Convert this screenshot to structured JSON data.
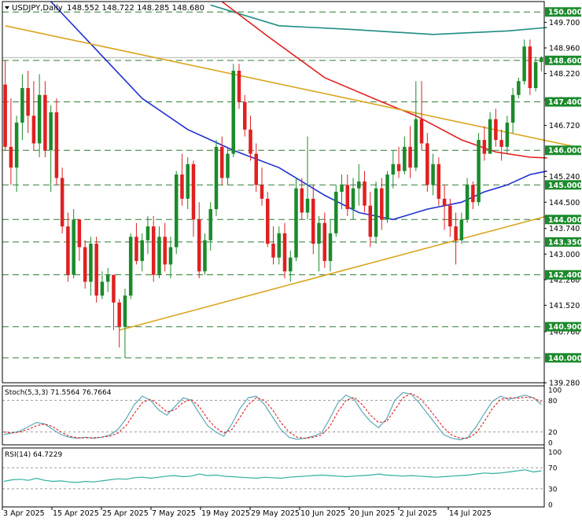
{
  "header": {
    "symbol_label": "USDJPY,Daily",
    "ohlc_text": "148.552 148.722 148.285 148.680"
  },
  "chart_data": [
    {
      "type": "candlestick",
      "title": "USDJPY,Daily",
      "ylim": [
        139.28,
        150.3
      ],
      "y_ticks": [
        139.28,
        140.76,
        141.52,
        142.26,
        143.0,
        143.74,
        144.5,
        145.24,
        146.72,
        147.46,
        148.22,
        148.96,
        149.7
      ],
      "levels": [
        150.0,
        148.6,
        147.4,
        146.0,
        145.0,
        144.0,
        143.35,
        142.4,
        140.9,
        140.0
      ],
      "x_labels": [
        "3 Apr 2025",
        "15 Apr 2025",
        "25 Apr 2025",
        "7 May 2025",
        "19 May 2025",
        "29 May 2025",
        "10 Jun 2025",
        "20 Jun 2025",
        "2 Jul 2025",
        "14 Jul 2025"
      ],
      "candles": [
        [
          147.9,
          148.6,
          146.0,
          146.1
        ],
        [
          146.1,
          147.5,
          145.0,
          145.5
        ],
        [
          145.5,
          147.0,
          144.8,
          146.8
        ],
        [
          146.8,
          148.2,
          146.3,
          147.8
        ],
        [
          147.8,
          148.3,
          146.5,
          147.0
        ],
        [
          147.0,
          148.0,
          146.0,
          146.2
        ],
        [
          146.2,
          148.2,
          145.8,
          147.6
        ],
        [
          147.6,
          148.0,
          145.8,
          146.0
        ],
        [
          146.0,
          147.3,
          144.8,
          147.1
        ],
        [
          147.1,
          147.5,
          145.0,
          145.2
        ],
        [
          145.2,
          145.5,
          143.6,
          143.8
        ],
        [
          143.8,
          144.2,
          142.2,
          142.4
        ],
        [
          142.4,
          144.3,
          142.3,
          144.0
        ],
        [
          144.0,
          144.0,
          142.8,
          143.2
        ],
        [
          143.2,
          143.4,
          142.0,
          142.2
        ],
        [
          142.2,
          143.5,
          141.8,
          143.3
        ],
        [
          143.3,
          143.5,
          141.6,
          141.8
        ],
        [
          141.8,
          142.5,
          141.7,
          142.2
        ],
        [
          142.2,
          142.6,
          141.9,
          142.4
        ],
        [
          142.4,
          142.4,
          140.8,
          141.6
        ],
        [
          141.6,
          141.7,
          140.3,
          140.9
        ],
        [
          140.9,
          142.0,
          140.0,
          141.8
        ],
        [
          141.8,
          143.6,
          141.7,
          143.5
        ],
        [
          143.5,
          143.9,
          142.7,
          142.8
        ],
        [
          142.8,
          143.6,
          142.5,
          143.4
        ],
        [
          143.4,
          144.1,
          143.0,
          143.8
        ],
        [
          143.8,
          144.1,
          142.2,
          142.4
        ],
        [
          142.4,
          143.8,
          142.3,
          143.5
        ],
        [
          143.5,
          143.9,
          142.5,
          142.7
        ],
        [
          142.7,
          143.5,
          142.3,
          143.2
        ],
        [
          143.2,
          145.4,
          143.0,
          145.3
        ],
        [
          145.3,
          145.9,
          144.4,
          144.6
        ],
        [
          144.6,
          145.8,
          144.3,
          145.6
        ],
        [
          145.6,
          145.7,
          143.5,
          144.0
        ],
        [
          144.0,
          144.5,
          142.3,
          142.5
        ],
        [
          142.5,
          143.6,
          142.4,
          143.4
        ],
        [
          143.4,
          144.5,
          143.1,
          144.3
        ],
        [
          144.3,
          146.3,
          144.1,
          146.1
        ],
        [
          146.1,
          146.4,
          145.0,
          145.2
        ],
        [
          145.2,
          146.1,
          145.0,
          145.9
        ],
        [
          145.9,
          148.5,
          145.8,
          148.3
        ],
        [
          148.3,
          148.5,
          147.2,
          147.4
        ],
        [
          147.4,
          147.6,
          146.4,
          146.6
        ],
        [
          146.6,
          147.0,
          145.7,
          145.9
        ],
        [
          145.9,
          146.2,
          144.8,
          145.0
        ],
        [
          145.0,
          145.5,
          144.4,
          144.6
        ],
        [
          144.6,
          144.8,
          143.2,
          143.3
        ],
        [
          143.3,
          143.8,
          142.7,
          142.9
        ],
        [
          142.9,
          143.8,
          142.7,
          143.6
        ],
        [
          143.6,
          143.9,
          142.3,
          142.5
        ],
        [
          142.5,
          143.1,
          142.2,
          142.9
        ],
        [
          142.9,
          145.2,
          142.8,
          144.9
        ],
        [
          144.9,
          145.2,
          144.0,
          144.2
        ],
        [
          144.2,
          146.4,
          144.0,
          144.6
        ],
        [
          144.6,
          145.0,
          143.0,
          143.3
        ],
        [
          143.3,
          144.1,
          142.5,
          143.9
        ],
        [
          143.9,
          144.2,
          142.6,
          142.8
        ],
        [
          142.8,
          144.0,
          142.5,
          143.6
        ],
        [
          143.6,
          145.0,
          143.5,
          144.8
        ],
        [
          144.8,
          145.3,
          144.3,
          145.0
        ],
        [
          145.0,
          145.3,
          144.1,
          144.3
        ],
        [
          144.3,
          145.2,
          144.0,
          144.9
        ],
        [
          144.9,
          145.6,
          144.4,
          145.1
        ],
        [
          145.1,
          145.4,
          144.2,
          144.4
        ],
        [
          144.4,
          144.8,
          143.2,
          143.5
        ],
        [
          143.5,
          145.1,
          143.3,
          144.9
        ],
        [
          144.9,
          145.2,
          143.7,
          144.0
        ],
        [
          144.0,
          145.4,
          143.9,
          145.3
        ],
        [
          145.3,
          146.0,
          144.9,
          145.6
        ],
        [
          145.6,
          146.1,
          145.2,
          145.4
        ],
        [
          145.4,
          146.4,
          145.3,
          146.1
        ],
        [
          146.1,
          146.7,
          145.2,
          145.5
        ],
        [
          145.5,
          148.0,
          145.4,
          146.9
        ],
        [
          146.9,
          148.0,
          146.0,
          146.2
        ],
        [
          146.2,
          146.5,
          144.8,
          145.0
        ],
        [
          145.0,
          145.9,
          144.7,
          145.6
        ],
        [
          145.6,
          145.8,
          144.4,
          144.6
        ],
        [
          144.6,
          145.0,
          143.7,
          144.4
        ],
        [
          144.4,
          144.6,
          143.5,
          143.8
        ],
        [
          143.8,
          144.2,
          142.7,
          143.4
        ],
        [
          143.4,
          144.2,
          143.3,
          144.0
        ],
        [
          144.0,
          145.2,
          143.9,
          145.0
        ],
        [
          145.0,
          145.1,
          144.3,
          144.5
        ],
        [
          144.5,
          146.5,
          144.4,
          146.3
        ],
        [
          146.3,
          146.7,
          145.7,
          145.9
        ],
        [
          145.9,
          147.1,
          145.9,
          146.9
        ],
        [
          146.9,
          147.2,
          146.1,
          146.3
        ],
        [
          146.3,
          146.6,
          145.7,
          146.1
        ],
        [
          146.1,
          147.0,
          145.9,
          146.8
        ],
        [
          146.8,
          147.8,
          146.5,
          147.6
        ],
        [
          147.6,
          148.1,
          147.5,
          148.0
        ],
        [
          148.0,
          149.2,
          147.9,
          149.0
        ],
        [
          149.0,
          149.2,
          147.6,
          147.8
        ],
        [
          147.8,
          148.7,
          147.7,
          148.55
        ],
        [
          148.552,
          148.722,
          148.285,
          148.68
        ]
      ],
      "trendlines": [
        {
          "color": "#daa520",
          "from": [
            0,
            149.6
          ],
          "to": [
            120,
            145.4
          ]
        },
        {
          "color": "#daa520",
          "from": [
            20,
            140.8
          ],
          "to": [
            95,
            144.1
          ]
        }
      ],
      "moving_averages": [
        {
          "color": "#1e8c82",
          "points": [
            [
              36,
              150.2
            ],
            [
              48,
              149.6
            ],
            [
              60,
              149.5
            ],
            [
              75,
              149.35
            ],
            [
              88,
              149.45
            ],
            [
              95,
              149.55
            ]
          ]
        },
        {
          "color": "#e02020",
          "points": [
            [
              38,
              150.3
            ],
            [
              46,
              149.3
            ],
            [
              56,
              148.1
            ],
            [
              66,
              147.4
            ],
            [
              72,
              147.0
            ],
            [
              80,
              146.3
            ],
            [
              86,
              145.95
            ],
            [
              92,
              145.8
            ],
            [
              95,
              145.78
            ]
          ]
        },
        {
          "color": "#2030d0",
          "points": [
            [
              8,
              150.3
            ],
            [
              16,
              148.9
            ],
            [
              24,
              147.5
            ],
            [
              32,
              146.6
            ],
            [
              40,
              146.0
            ],
            [
              48,
              145.5
            ],
            [
              56,
              144.7
            ],
            [
              62,
              144.2
            ],
            [
              68,
              144.0
            ],
            [
              74,
              144.3
            ],
            [
              80,
              144.5
            ],
            [
              84,
              144.8
            ],
            [
              88,
              145.0
            ],
            [
              92,
              145.3
            ],
            [
              95,
              145.4
            ]
          ]
        }
      ]
    },
    {
      "type": "line",
      "title": "Stoch(5,3,3) 71.5564 76.7664",
      "ylim": [
        0,
        100
      ],
      "y_ticks": [
        0,
        20,
        80,
        100
      ],
      "series": [
        {
          "name": "Main",
          "color": "#5ba8b8",
          "values": [
            15,
            18,
            22,
            30,
            38,
            35,
            25,
            15,
            10,
            8,
            10,
            8,
            10,
            14,
            25,
            45,
            72,
            88,
            80,
            62,
            52,
            68,
            85,
            80,
            55,
            32,
            20,
            12,
            35,
            65,
            85,
            88,
            72,
            48,
            25,
            10,
            6,
            8,
            12,
            18,
            45,
            75,
            90,
            82,
            58,
            40,
            28,
            45,
            80,
            95,
            92,
            75,
            55,
            35,
            15,
            8,
            5,
            10,
            30,
            55,
            78,
            88,
            82,
            86,
            90,
            85,
            72
          ]
        },
        {
          "name": "Signal",
          "color": "#e03030",
          "values": [
            20,
            18,
            20,
            25,
            32,
            35,
            30,
            20,
            12,
            9,
            9,
            9,
            10,
            12,
            18,
            32,
            55,
            76,
            82,
            72,
            58,
            62,
            76,
            82,
            68,
            45,
            28,
            18,
            25,
            48,
            72,
            85,
            80,
            62,
            38,
            20,
            10,
            8,
            10,
            14,
            30,
            58,
            80,
            86,
            72,
            52,
            38,
            40,
            62,
            85,
            93,
            85,
            68,
            48,
            28,
            14,
            8,
            8,
            18,
            40,
            65,
            82,
            85,
            84,
            86,
            85,
            77
          ]
        }
      ]
    },
    {
      "type": "line",
      "title": "RSI(14) 64.7229",
      "ylim": [
        0,
        100
      ],
      "y_ticks": [
        0,
        30,
        70,
        100
      ],
      "series": [
        {
          "name": "RSI",
          "color": "#30b0a0",
          "values": [
            44,
            47,
            48,
            46,
            50,
            46,
            44,
            45,
            43,
            42,
            44,
            43,
            45,
            47,
            49,
            48,
            51,
            52,
            50,
            52,
            54,
            55,
            53,
            54,
            58,
            55,
            56,
            54,
            53,
            52,
            51,
            50,
            52,
            51,
            50,
            52,
            53,
            54,
            55,
            56,
            55,
            54,
            53,
            54,
            55,
            56,
            58,
            56,
            55,
            54,
            55,
            54,
            53,
            52,
            53,
            54,
            55,
            56,
            58,
            60,
            59,
            60,
            62,
            64,
            66,
            62,
            64
          ]
        }
      ]
    }
  ]
}
